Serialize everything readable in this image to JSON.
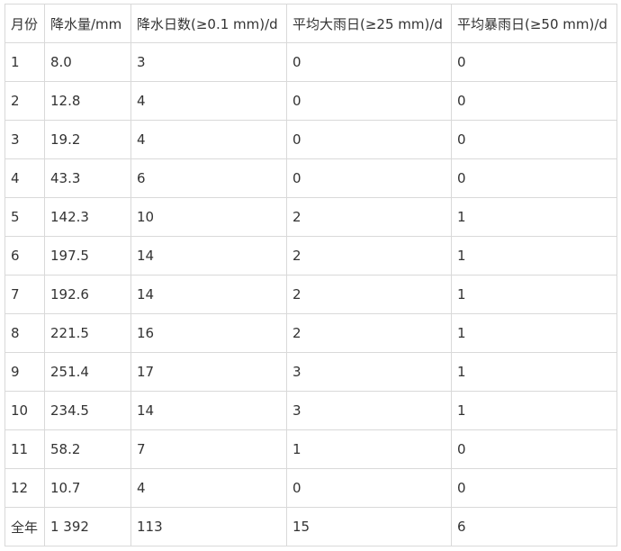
{
  "table": {
    "headers": [
      "月份",
      "降水量/mm",
      "降水日数(≥0.1 mm)/d",
      "平均大雨日(≥25 mm)/d",
      "平均暴雨日(≥50 mm)/d"
    ],
    "rows": [
      [
        "1",
        "8.0",
        "3",
        "0",
        "0"
      ],
      [
        "2",
        "12.8",
        "4",
        "0",
        "0"
      ],
      [
        "3",
        "19.2",
        "4",
        "0",
        "0"
      ],
      [
        "4",
        "43.3",
        "6",
        "0",
        "0"
      ],
      [
        "5",
        "142.3",
        "10",
        "2",
        "1"
      ],
      [
        "6",
        "197.5",
        "14",
        "2",
        "1"
      ],
      [
        "7",
        "192.6",
        "14",
        "2",
        "1"
      ],
      [
        "8",
        "221.5",
        "16",
        "2",
        "1"
      ],
      [
        "9",
        "251.4",
        "17",
        "3",
        "1"
      ],
      [
        "10",
        "234.5",
        "14",
        "3",
        "1"
      ],
      [
        "11",
        "58.2",
        "7",
        "1",
        "0"
      ],
      [
        "12",
        "10.7",
        "4",
        "0",
        "0"
      ],
      [
        "全年",
        "1 392",
        "113",
        "15",
        "6"
      ]
    ]
  }
}
